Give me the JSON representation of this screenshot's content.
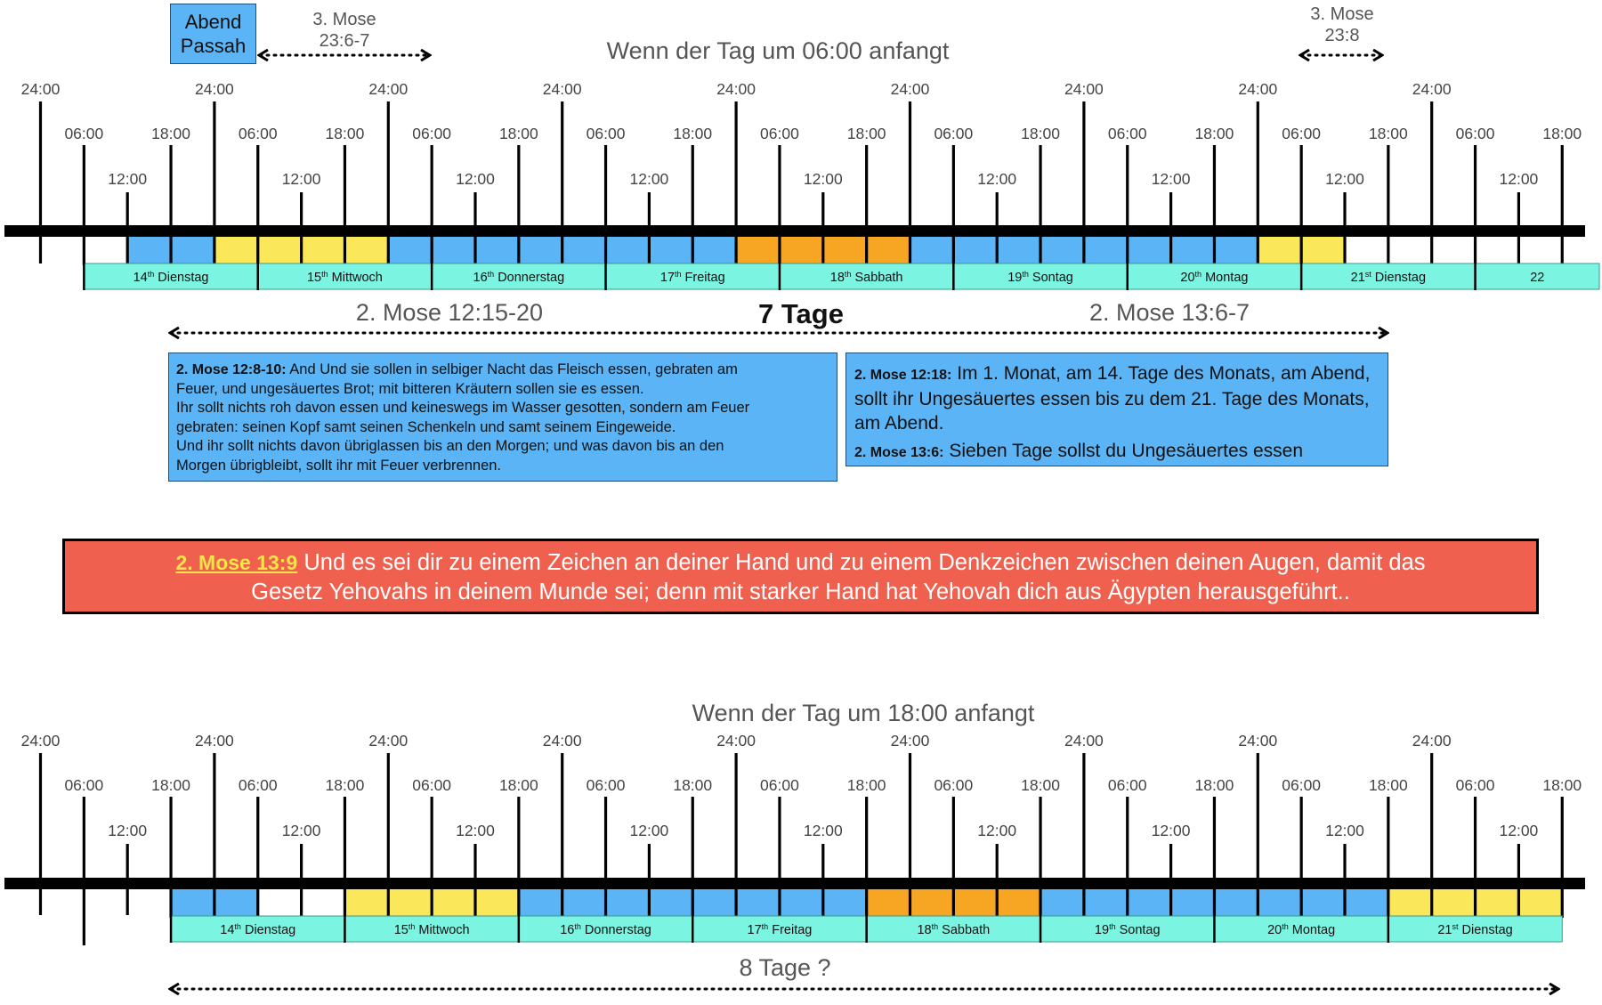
{
  "colors": {
    "blue": "#5ab4f5",
    "yellow": "#fbe75a",
    "orange": "#f7a623",
    "cyan": "#7cf4e2",
    "red": "#f0604f",
    "ref_yellow": "#f5e34a"
  },
  "passah_box": {
    "line1": "Abend",
    "line2": "Passah"
  },
  "top": {
    "title": "Wenn der Tag um 06:00 anfangt",
    "mose_left": {
      "line1": "3. Mose",
      "line2": "23:6-7"
    },
    "mose_right": {
      "line1": "3. Mose",
      "line2": "23:8"
    },
    "tick_labels": {
      "t24": [
        "24:00",
        "24:00",
        "24:00",
        "24:00",
        "24:00",
        "24:00",
        "24:00",
        "24:00",
        "24:00"
      ],
      "t06": [
        "06:00",
        "06:00",
        "06:00",
        "06:00",
        "06:00",
        "06:00",
        "06:00",
        "06:00",
        "06:00"
      ],
      "t18": [
        "18:00",
        "18:00",
        "18:00",
        "18:00",
        "18:00",
        "18:00",
        "18:00",
        "18:00",
        "18:00"
      ],
      "t12": [
        "12:00",
        "12:00",
        "12:00",
        "12:00",
        "12:00",
        "12:00",
        "12:00",
        "12:00",
        "12:00"
      ]
    },
    "days": [
      {
        "num": "14",
        "sup": "th",
        "name": "Dienstag"
      },
      {
        "num": "15",
        "sup": "th",
        "name": "Mittwoch"
      },
      {
        "num": "16",
        "sup": "th",
        "name": "Donnerstag"
      },
      {
        "num": "17",
        "sup": "th",
        "name": "Freitag"
      },
      {
        "num": "18",
        "sup": "th",
        "name": "Sabbath"
      },
      {
        "num": "19",
        "sup": "th",
        "name": "Sontag"
      },
      {
        "num": "20",
        "sup": "th",
        "name": "Montag"
      },
      {
        "num": "21",
        "sup": "st",
        "name": "Dienstag"
      },
      {
        "num": "22",
        "sup": "",
        "name": ""
      }
    ],
    "segment_colors": [
      "white",
      "white",
      "blue",
      "blue",
      "yellow",
      "yellow",
      "yellow",
      "yellow",
      "blue",
      "blue",
      "blue",
      "blue",
      "blue",
      "blue",
      "blue",
      "blue",
      "orange",
      "orange",
      "orange",
      "orange",
      "blue",
      "blue",
      "blue",
      "blue",
      "blue",
      "blue",
      "blue",
      "blue",
      "yellow",
      "yellow",
      "white",
      "white",
      "white",
      "white"
    ],
    "span_left_label": "2. Mose 12:15-20",
    "span_center_label": "7 Tage",
    "span_right_label": "2. Mose 13:6-7"
  },
  "text_left": {
    "ref": "2. Mose 12:8-10:",
    "lines": [
      " And Und sie sollen in selbiger Nacht das Fleisch essen, gebraten am",
      "Feuer, und ungesäuertes Brot; mit bitteren Kräutern sollen sie es essen.",
      "Ihr sollt nichts roh davon essen und keineswegs im Wasser gesotten, sondern am Feuer",
      "gebraten: seinen Kopf samt seinen Schenkeln und samt seinem Eingeweide.",
      "Und ihr sollt nichts davon übriglassen bis an den Morgen; und was davon bis an den",
      "Morgen übrigbleibt, sollt ihr mit Feuer verbrennen."
    ]
  },
  "text_right": {
    "ref1": "2. Mose 12:18:",
    "text1": " Im 1. Monat, am 14. Tage des Monats, am Abend, sollt ihr Ungesäuertes essen bis zu dem 21. Tage des Monats, am Abend.",
    "ref2": "2. Mose 13:6:",
    "text2": " Sieben Tage sollst du Ungesäuertes essen"
  },
  "red_box": {
    "ref": "2. Mose 13:9",
    "line1": "  Und es sei dir zu einem Zeichen an deiner Hand und zu einem Denkzeichen zwischen deinen Augen, damit das",
    "line2": "Gesetz Yehovahs in deinem Munde sei; denn mit starker Hand hat Yehovah dich aus Ägypten herausgeführt.."
  },
  "bottom": {
    "title": "Wenn der Tag um 18:00 anfangt",
    "tick_labels": {
      "t24": [
        "24:00",
        "24:00",
        "24:00",
        "24:00",
        "24:00",
        "24:00",
        "24:00",
        "24:00",
        "24:00"
      ],
      "t06": [
        "06:00",
        "06:00",
        "06:00",
        "06:00",
        "06:00",
        "06:00",
        "06:00",
        "06:00",
        "06:00"
      ],
      "t18": [
        "18:00",
        "18:00",
        "18:00",
        "18:00",
        "18:00",
        "18:00",
        "18:00",
        "18:00",
        "18:00"
      ],
      "t12": [
        "12:00",
        "12:00",
        "12:00",
        "12:00",
        "12:00",
        "12:00",
        "12:00",
        "12:00",
        "12:00"
      ]
    },
    "days": [
      {
        "num": "14",
        "sup": "th",
        "name": "Dienstag"
      },
      {
        "num": "15",
        "sup": "th",
        "name": "Mittwoch"
      },
      {
        "num": "16",
        "sup": "th",
        "name": "Donnerstag"
      },
      {
        "num": "17",
        "sup": "th",
        "name": "Freitag"
      },
      {
        "num": "18",
        "sup": "th",
        "name": "Sabbath"
      },
      {
        "num": "19",
        "sup": "th",
        "name": "Sontag"
      },
      {
        "num": "20",
        "sup": "th",
        "name": "Montag"
      },
      {
        "num": "21",
        "sup": "st",
        "name": "Dienstag"
      }
    ],
    "segment_colors": [
      "blue",
      "blue",
      "white",
      "white",
      "yellow",
      "yellow",
      "yellow",
      "yellow",
      "blue",
      "blue",
      "blue",
      "blue",
      "blue",
      "blue",
      "blue",
      "blue",
      "orange",
      "orange",
      "orange",
      "orange",
      "blue",
      "blue",
      "blue",
      "blue",
      "blue",
      "blue",
      "blue",
      "blue",
      "yellow",
      "yellow",
      "yellow",
      "yellow"
    ],
    "span_label": "8 Tage ?"
  }
}
